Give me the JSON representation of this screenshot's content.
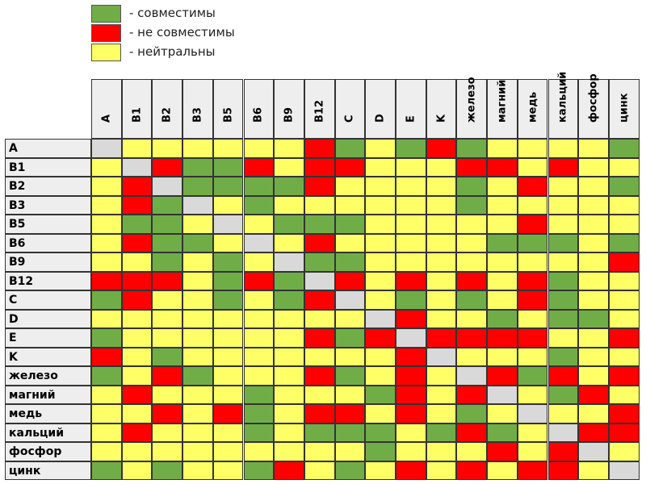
{
  "legend": [
    {
      "label": "- совместимы",
      "color": "#70ad47"
    },
    {
      "label": "- не совместимы",
      "color": "#ff0000"
    },
    {
      "label": "- нейтральны",
      "color": "#ffff66"
    }
  ],
  "empty_color": "#d9d9d9",
  "columns": [
    "A",
    "B1",
    "B2",
    "B3",
    "B5",
    "B6",
    "B9",
    "B12",
    "C",
    "D",
    "E",
    "K",
    "железо",
    "магний",
    "медь",
    "кальций",
    "фосфор",
    "цинк"
  ],
  "rows": [
    {
      "label": "A",
      "cells": [
        null,
        2,
        2,
        2,
        2,
        2,
        2,
        1,
        0,
        2,
        0,
        1,
        0,
        2,
        2,
        2,
        2,
        0
      ]
    },
    {
      "label": "B1",
      "cells": [
        2,
        null,
        1,
        0,
        0,
        1,
        2,
        1,
        1,
        2,
        2,
        2,
        1,
        1,
        2,
        1,
        2,
        2
      ]
    },
    {
      "label": "B2",
      "cells": [
        2,
        1,
        null,
        0,
        0,
        0,
        0,
        1,
        2,
        2,
        2,
        2,
        0,
        2,
        1,
        2,
        2,
        0
      ]
    },
    {
      "label": "B3",
      "cells": [
        2,
        1,
        0,
        null,
        2,
        0,
        2,
        2,
        2,
        2,
        2,
        2,
        0,
        2,
        2,
        2,
        2,
        2
      ]
    },
    {
      "label": "B5",
      "cells": [
        2,
        0,
        0,
        2,
        null,
        2,
        0,
        0,
        0,
        2,
        2,
        2,
        2,
        2,
        1,
        2,
        2,
        2
      ]
    },
    {
      "label": "B6",
      "cells": [
        2,
        1,
        0,
        0,
        2,
        null,
        2,
        1,
        2,
        2,
        2,
        2,
        2,
        0,
        0,
        0,
        2,
        0
      ]
    },
    {
      "label": "B9",
      "cells": [
        2,
        2,
        0,
        2,
        0,
        2,
        null,
        0,
        0,
        2,
        2,
        2,
        2,
        2,
        2,
        2,
        2,
        1
      ]
    },
    {
      "label": "B12",
      "cells": [
        1,
        1,
        1,
        2,
        0,
        1,
        0,
        null,
        1,
        2,
        1,
        2,
        1,
        2,
        1,
        0,
        2,
        2
      ]
    },
    {
      "label": "C",
      "cells": [
        0,
        1,
        2,
        2,
        0,
        2,
        0,
        1,
        null,
        2,
        0,
        2,
        0,
        2,
        1,
        0,
        2,
        2
      ]
    },
    {
      "label": "D",
      "cells": [
        2,
        2,
        2,
        2,
        2,
        2,
        2,
        2,
        2,
        null,
        1,
        2,
        2,
        0,
        2,
        0,
        0,
        2
      ]
    },
    {
      "label": "E",
      "cells": [
        0,
        2,
        2,
        2,
        2,
        2,
        2,
        1,
        0,
        1,
        null,
        1,
        1,
        1,
        1,
        2,
        2,
        1
      ]
    },
    {
      "label": "K",
      "cells": [
        1,
        2,
        0,
        2,
        2,
        2,
        2,
        2,
        2,
        2,
        1,
        null,
        2,
        2,
        2,
        0,
        2,
        2
      ]
    },
    {
      "label": "железо",
      "cells": [
        0,
        2,
        1,
        0,
        2,
        2,
        2,
        1,
        0,
        2,
        1,
        2,
        null,
        1,
        0,
        1,
        2,
        1
      ]
    },
    {
      "label": "магний",
      "cells": [
        2,
        1,
        2,
        2,
        2,
        0,
        2,
        2,
        2,
        0,
        1,
        2,
        1,
        null,
        2,
        0,
        1,
        2
      ]
    },
    {
      "label": "медь",
      "cells": [
        2,
        2,
        1,
        2,
        1,
        0,
        2,
        1,
        1,
        2,
        1,
        2,
        0,
        2,
        null,
        2,
        2,
        1
      ]
    },
    {
      "label": "кальций",
      "cells": [
        2,
        1,
        2,
        2,
        2,
        0,
        2,
        0,
        0,
        0,
        2,
        0,
        1,
        0,
        2,
        null,
        1,
        1
      ]
    },
    {
      "label": "фосфор",
      "cells": [
        2,
        2,
        2,
        2,
        2,
        2,
        2,
        2,
        2,
        0,
        2,
        2,
        2,
        1,
        2,
        1,
        null,
        2
      ]
    },
    {
      "label": "цинк",
      "cells": [
        0,
        2,
        0,
        2,
        2,
        0,
        1,
        2,
        0,
        2,
        1,
        2,
        1,
        2,
        1,
        1,
        2,
        null
      ]
    }
  ]
}
